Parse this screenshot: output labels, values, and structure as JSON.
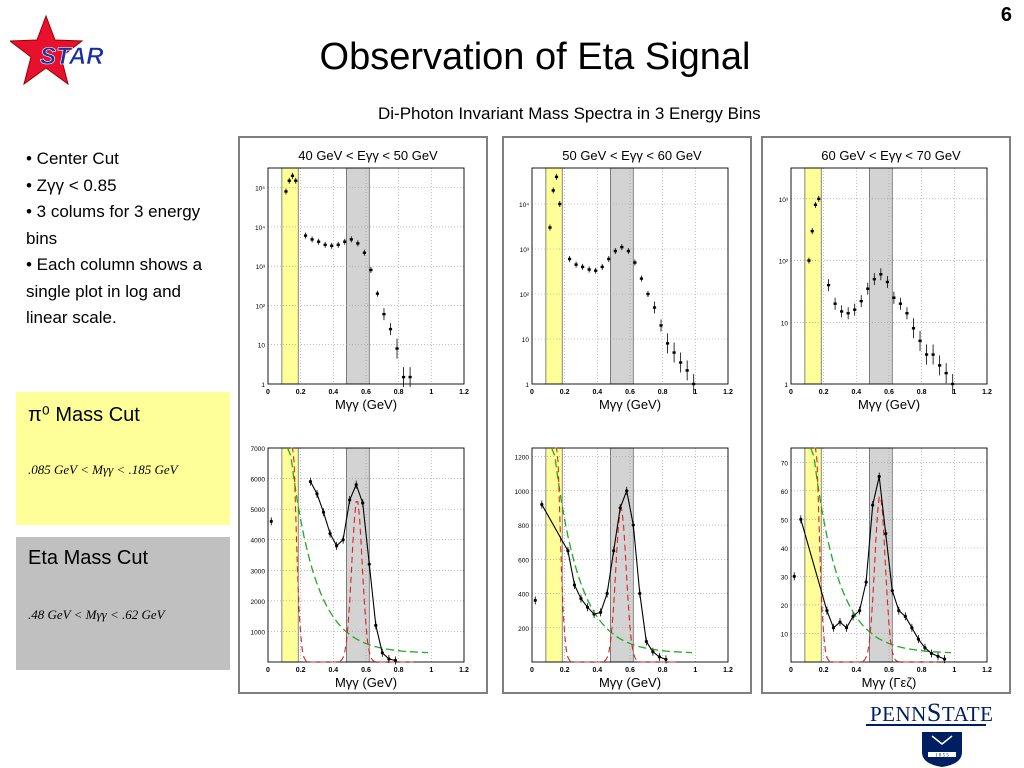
{
  "slide": {
    "number": "6",
    "title": "Observation of Eta Signal",
    "subtitle": "Di-Photon Invariant Mass Spectra in 3 Energy Bins",
    "logo_text": "STAR"
  },
  "bullets": [
    "• Center Cut",
    "• Zγγ < 0.85",
    "• 3 colums for 3 energy bins",
    "• Each column shows a single plot in log and linear scale."
  ],
  "cuts": {
    "pi0": {
      "title": "π⁰ Mass Cut",
      "formula": ".085 GeV < Mγγ < .185 GeV",
      "color": "#ffff99"
    },
    "eta": {
      "title": "Eta Mass Cut",
      "formula": ".48 GeV < Mγγ < .62 GeV",
      "color": "#c0c0c0"
    }
  },
  "colors": {
    "pi0_band": "#ffff99",
    "eta_band": "#d3d3d3",
    "fit_total": "#000000",
    "fit_signal": "#e02020",
    "fit_background": "#22aa22"
  },
  "chart_data": [
    {
      "type": "scatter",
      "bin": "40 GeV < Eγγ < 50 GeV",
      "scale": "log",
      "xlabel": "Mγγ (GeV)",
      "xlim": [
        0,
        1.2
      ],
      "xticks": [
        "0",
        "0.2",
        "0.4",
        "0.6",
        "0.8",
        "1",
        "1.2"
      ],
      "yticks": [
        "1",
        "10",
        "10²",
        "10³",
        "10⁴",
        "10⁵"
      ],
      "ylim_decades": [
        0,
        5.5
      ],
      "pi0_band": [
        0.085,
        0.185
      ],
      "eta_band": [
        0.48,
        0.62
      ],
      "x": [
        0.11,
        0.13,
        0.15,
        0.17,
        0.23,
        0.27,
        0.31,
        0.35,
        0.39,
        0.43,
        0.47,
        0.51,
        0.55,
        0.59,
        0.63,
        0.67,
        0.71,
        0.75,
        0.79,
        0.83,
        0.87
      ],
      "y": [
        80000,
        150000,
        200000,
        150000,
        6000,
        4800,
        4200,
        3500,
        3300,
        3500,
        4200,
        4800,
        3800,
        2200,
        800,
        200,
        60,
        25,
        8,
        1.5,
        1.5
      ]
    },
    {
      "type": "scatter",
      "bin": "50 GeV < Eγγ < 60 GeV",
      "scale": "log",
      "xlabel": "Mγγ (GeV)",
      "xlim": [
        0,
        1.2
      ],
      "xticks": [
        "0",
        "0.2",
        "0.4",
        "0.6",
        "0.8",
        "1",
        "1.2"
      ],
      "yticks": [
        "1",
        "10",
        "10²",
        "10³",
        "10⁴"
      ],
      "ylim_decades": [
        0,
        4.8
      ],
      "pi0_band": [
        0.085,
        0.185
      ],
      "eta_band": [
        0.48,
        0.62
      ],
      "x": [
        0.11,
        0.13,
        0.15,
        0.17,
        0.23,
        0.27,
        0.31,
        0.35,
        0.39,
        0.43,
        0.47,
        0.51,
        0.55,
        0.59,
        0.63,
        0.67,
        0.71,
        0.75,
        0.79,
        0.83,
        0.87,
        0.91,
        0.95,
        0.99
      ],
      "y": [
        3000,
        20000,
        40000,
        10000,
        600,
        450,
        400,
        350,
        330,
        400,
        600,
        900,
        1100,
        900,
        500,
        220,
        100,
        50,
        20,
        8,
        5,
        3,
        2,
        1
      ]
    },
    {
      "type": "scatter",
      "bin": "60 GeV < Eγγ < 70 GeV",
      "scale": "log",
      "xlabel": "Mγγ (GeV)",
      "xlim": [
        0,
        1.2
      ],
      "xticks": [
        "0",
        "0.2",
        "0.4",
        "0.6",
        "0.8",
        "1",
        "1.2"
      ],
      "yticks": [
        "1",
        "10",
        "10²",
        "10³"
      ],
      "ylim_decades": [
        0,
        3.5
      ],
      "pi0_band": [
        0.085,
        0.185
      ],
      "eta_band": [
        0.48,
        0.62
      ],
      "x": [
        0.11,
        0.13,
        0.15,
        0.17,
        0.23,
        0.27,
        0.31,
        0.35,
        0.39,
        0.43,
        0.47,
        0.51,
        0.55,
        0.59,
        0.63,
        0.67,
        0.71,
        0.75,
        0.79,
        0.83,
        0.87,
        0.91,
        0.95,
        0.99
      ],
      "y": [
        100,
        300,
        800,
        1000,
        40,
        20,
        15,
        14,
        16,
        22,
        35,
        50,
        60,
        45,
        25,
        20,
        14,
        8,
        5,
        3,
        3,
        2,
        1.5,
        1
      ]
    },
    {
      "type": "line",
      "bin": "40 GeV < Eγγ < 50 GeV",
      "scale": "linear",
      "xlabel": "Mγγ (GeV)",
      "xlim": [
        0,
        1.2
      ],
      "ylim": [
        0,
        7000
      ],
      "xticks": [
        "0",
        "0.2",
        "0.4",
        "0.6",
        "0.8",
        "1",
        "1.2"
      ],
      "yticks": [
        "1000",
        "2000",
        "3000",
        "4000",
        "5000",
        "6000",
        "7000"
      ],
      "pi0_band": [
        0.085,
        0.185
      ],
      "eta_band": [
        0.48,
        0.62
      ],
      "x": [
        0.02,
        0.26,
        0.3,
        0.34,
        0.38,
        0.42,
        0.46,
        0.5,
        0.54,
        0.58,
        0.62,
        0.66,
        0.7,
        0.74,
        0.78
      ],
      "y": [
        4600,
        5900,
        5500,
        4900,
        4200,
        3800,
        4000,
        5300,
        5800,
        5200,
        3200,
        1200,
        300,
        100,
        50
      ]
    },
    {
      "type": "line",
      "bin": "50 GeV < Eγγ < 60 GeV",
      "scale": "linear",
      "xlabel": "Mγγ (GeV)",
      "xlim": [
        0,
        1.2
      ],
      "ylim": [
        0,
        1250
      ],
      "xticks": [
        "0",
        "0.2",
        "0.4",
        "0.6",
        "0.8",
        "1",
        "1.2"
      ],
      "yticks": [
        "200",
        "400",
        "600",
        "800",
        "1000",
        "1200"
      ],
      "pi0_band": [
        0.085,
        0.185
      ],
      "eta_band": [
        0.48,
        0.62
      ],
      "x": [
        0.02,
        0.06,
        0.22,
        0.26,
        0.3,
        0.34,
        0.38,
        0.42,
        0.46,
        0.5,
        0.54,
        0.58,
        0.62,
        0.66,
        0.7,
        0.74,
        0.78,
        0.82
      ],
      "y": [
        360,
        920,
        650,
        450,
        370,
        320,
        280,
        290,
        400,
        650,
        900,
        1000,
        800,
        400,
        120,
        60,
        30,
        15
      ]
    },
    {
      "type": "line",
      "bin": "60 GeV < Eγγ < 70 GeV",
      "scale": "linear",
      "xlabel": "Mγγ (Γεζ)",
      "xlim": [
        0,
        1.2
      ],
      "ylim": [
        0,
        75
      ],
      "xticks": [
        "0",
        "0.2",
        "0.4",
        "0.6",
        "0.8",
        "1",
        "1.2"
      ],
      "yticks": [
        "10",
        "20",
        "30",
        "40",
        "50",
        "60",
        "70"
      ],
      "pi0_band": [
        0.085,
        0.185
      ],
      "eta_band": [
        0.48,
        0.62
      ],
      "x": [
        0.02,
        0.06,
        0.22,
        0.26,
        0.3,
        0.34,
        0.38,
        0.42,
        0.46,
        0.5,
        0.54,
        0.58,
        0.62,
        0.66,
        0.7,
        0.74,
        0.78,
        0.82,
        0.86,
        0.9,
        0.94
      ],
      "y": [
        30,
        50,
        18,
        12,
        14,
        12,
        16,
        18,
        28,
        55,
        65,
        45,
        25,
        18,
        16,
        12,
        8,
        5,
        3,
        2,
        1
      ]
    }
  ]
}
